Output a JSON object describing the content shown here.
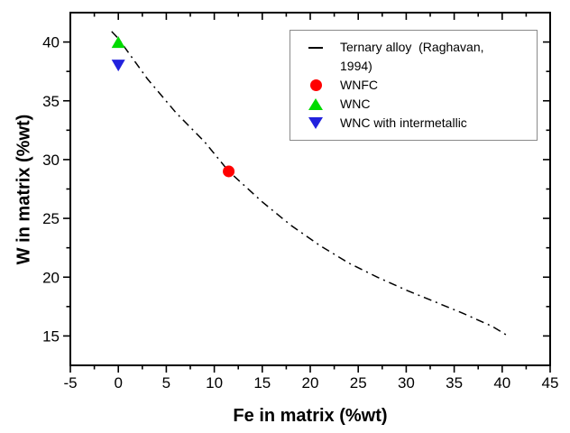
{
  "chart_data": {
    "type": "scatter",
    "title": "",
    "xlabel": "Fe in matrix (%wt)",
    "ylabel": "W in matrix (%wt)",
    "xlim": [
      -5,
      45
    ],
    "ylim": [
      12.5,
      42.5
    ],
    "xticks": [
      -5,
      0,
      5,
      10,
      15,
      20,
      25,
      30,
      35,
      40,
      45
    ],
    "yticks": [
      15,
      20,
      25,
      30,
      35,
      40
    ],
    "x_minor_tick_step": 2.5,
    "y_minor_tick_step": 2.5,
    "grid": false,
    "legend_position": "top-right",
    "frame_color": "#000000",
    "series": [
      {
        "name": "Ternary alloy  (Raghavan, 1994)",
        "type": "line",
        "line_style": "dash-dot",
        "color": "#000000",
        "x": [
          -0.7,
          0,
          3,
          6,
          9,
          11.5,
          15,
          18,
          21,
          24,
          27,
          30,
          33,
          36,
          39,
          40.6
        ],
        "y": [
          40.9,
          40.3,
          36.9,
          34.0,
          31.5,
          29.0,
          26.4,
          24.4,
          22.7,
          21.2,
          20.0,
          18.9,
          17.9,
          16.9,
          15.8,
          15.0
        ]
      },
      {
        "name": "WNFC",
        "type": "scatter",
        "marker": "circle",
        "color": "#ff0000",
        "points": [
          [
            11.5,
            29
          ]
        ]
      },
      {
        "name": "WNC",
        "type": "scatter",
        "marker": "triangle-up",
        "color": "#00db00",
        "points": [
          [
            0,
            40
          ]
        ]
      },
      {
        "name": "WNC with intermetallic",
        "type": "scatter",
        "marker": "triangle-down",
        "color": "#2222dd",
        "points": [
          [
            0,
            38
          ]
        ]
      }
    ]
  },
  "legend": {
    "items": [
      {
        "label": "Ternary alloy  (Raghavan, 1994)",
        "marker": "dash-dot-line-sample"
      },
      {
        "label": "WNFC",
        "marker": "red-circle"
      },
      {
        "label": "WNC",
        "marker": "green-triangle-up"
      },
      {
        "label": "WNC with intermetallic",
        "marker": "blue-triangle-down"
      }
    ]
  }
}
